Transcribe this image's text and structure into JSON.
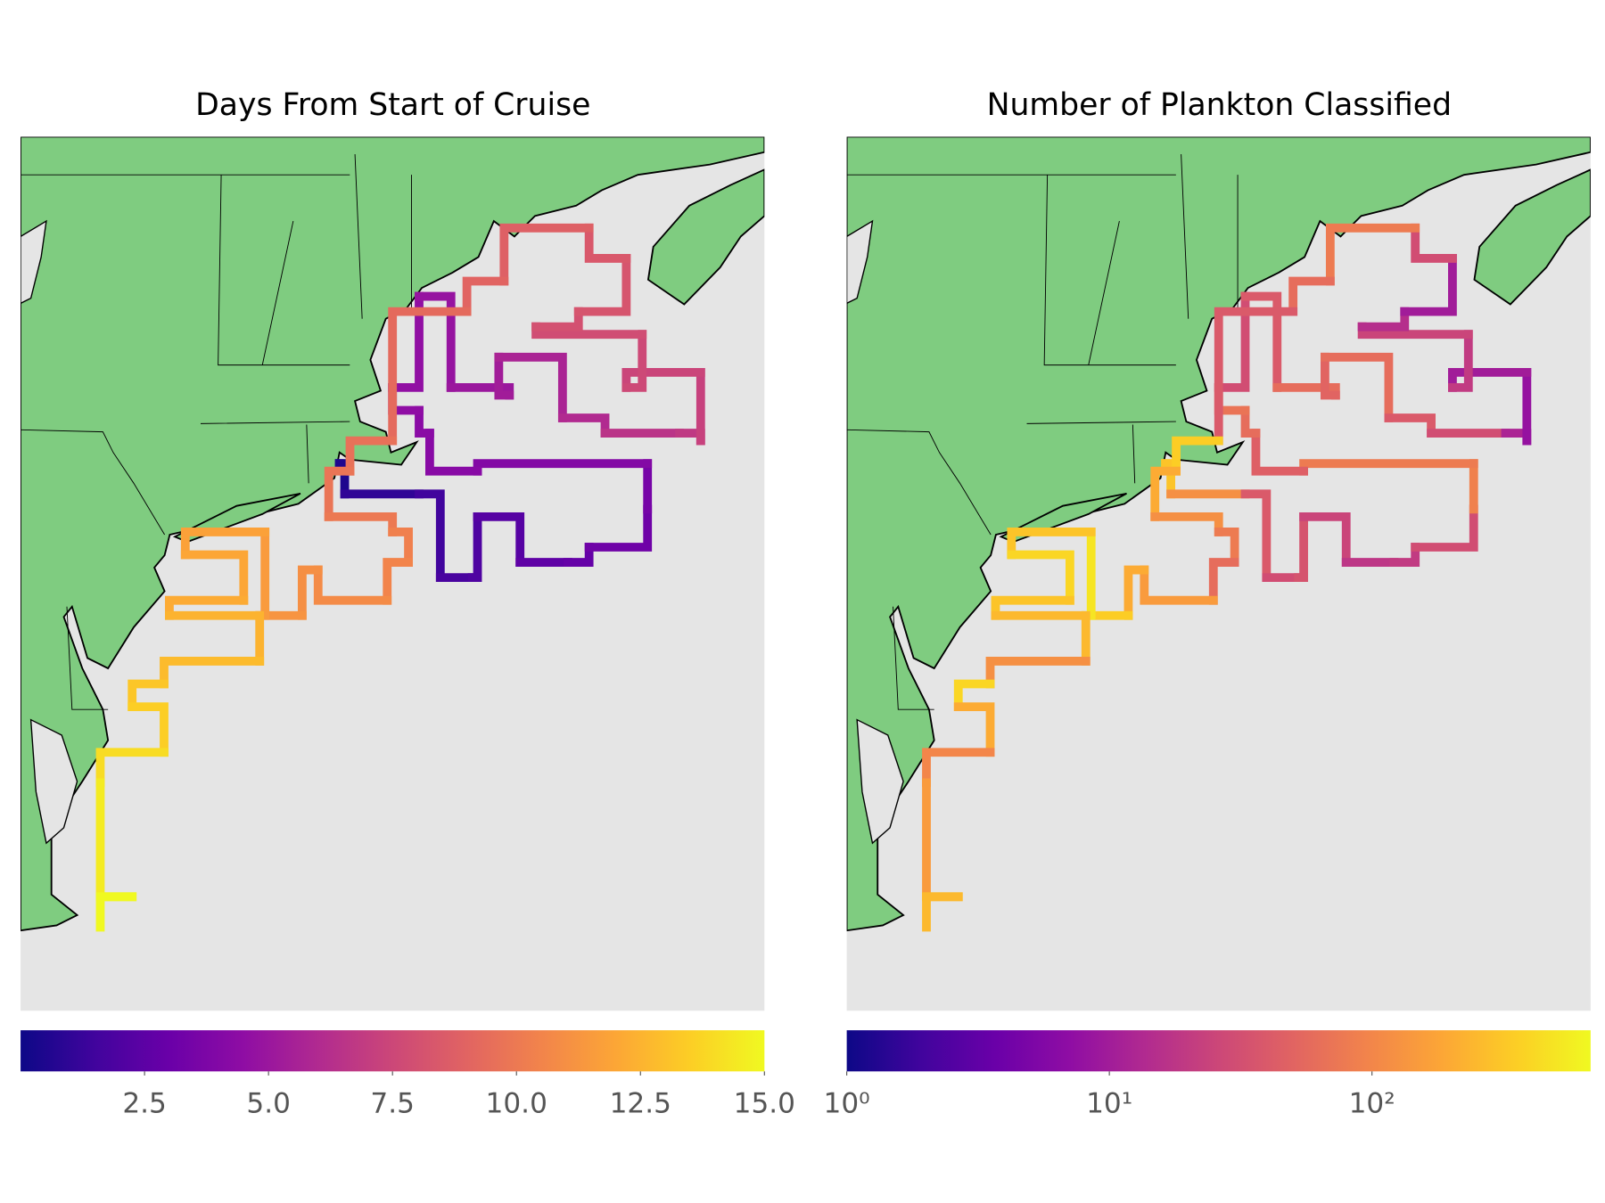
{
  "chart_data": [
    {
      "type": "map",
      "title": "Days From Start of Cruise",
      "colormap": "plasma",
      "xlim": [
        -77.5,
        -63.5
      ],
      "ylim": [
        35,
        46.5
      ],
      "track": {
        "lon": [
          -71.5,
          -71.4,
          -70.0,
          -69.6,
          -69.0,
          -68.9,
          -68.1,
          -67.2,
          -66.8,
          -65.7,
          -65.7,
          -68.9,
          -69.8,
          -70.0,
          -70.5,
          -70.0,
          -69.4,
          -68.3,
          -68.5,
          -67.3,
          -66.5,
          -65.1,
          -64.7,
          -64.7,
          -66.1,
          -65.8,
          -67.8,
          -67.0,
          -66.1,
          -66.8,
          -68.4,
          -69.1,
          -70.5,
          -71.3,
          -71.7,
          -70.5,
          -70.2,
          -70.6,
          -71.9,
          -72.2,
          -73.0,
          -72.9,
          -74.4,
          -73.3,
          -74.7,
          -73.0,
          -74.8,
          -75.4,
          -74.8,
          -76.0,
          -76.0,
          -75.4,
          -76.0
        ],
        "lat": [
          42.2,
          41.8,
          41.8,
          40.7,
          40.7,
          41.5,
          40.9,
          40.9,
          41.1,
          41.6,
          42.2,
          42.1,
          42.6,
          42.9,
          43.2,
          44.4,
          43.2,
          43.1,
          43.6,
          42.8,
          42.6,
          42.6,
          42.5,
          43.4,
          43.2,
          43.9,
          44.0,
          44.2,
          44.9,
          45.3,
          44.6,
          44.2,
          42.5,
          42.1,
          41.5,
          41.3,
          40.9,
          40.4,
          40.8,
          40.2,
          40.2,
          41.3,
          41.0,
          40.4,
          40.2,
          39.6,
          39.3,
          39.0,
          38.4,
          38.0,
          36.5,
          36.5,
          36.1
        ],
        "values": [
          0.3,
          0.5,
          1,
          1.5,
          1.8,
          2,
          2.3,
          2.6,
          2.8,
          3.2,
          3.5,
          4,
          4.2,
          4.3,
          4.5,
          4.6,
          4.8,
          5,
          5.3,
          5.7,
          6,
          6.5,
          6.8,
          7.2,
          7.4,
          7.6,
          7.8,
          8,
          8.2,
          8.4,
          8.8,
          9,
          9.3,
          9.6,
          9.8,
          10,
          10.3,
          10.5,
          10.8,
          11,
          11.2,
          11.5,
          11.8,
          12,
          12.2,
          12.5,
          12.8,
          13.2,
          13.5,
          14,
          14.5,
          14.7,
          15
        ]
      },
      "colorbar": {
        "scale": "linear",
        "clim": [
          0,
          15
        ],
        "ticks": [
          2.5,
          {
            "value": 5,
            "label": "5.0"
          },
          7.5,
          {
            "value": 10,
            "label": "10.0"
          },
          12.5,
          {
            "value": 15,
            "label": "15.0"
          }
        ]
      }
    },
    {
      "type": "map",
      "title": "Number of Plankton Classified",
      "colormap": "plasma",
      "xlim": [
        -77.5,
        -63.5
      ],
      "ylim": [
        35,
        46.5
      ],
      "track": {
        "lon": [
          -71.5,
          -71.4,
          -70.0,
          -69.6,
          -69.0,
          -68.9,
          -68.1,
          -67.2,
          -66.8,
          -65.7,
          -65.7,
          -68.9,
          -69.8,
          -70.0,
          -70.5,
          -70.0,
          -69.4,
          -68.3,
          -68.5,
          -67.3,
          -66.5,
          -65.1,
          -64.7,
          -64.7,
          -66.1,
          -65.8,
          -67.8,
          -67.0,
          -66.1,
          -66.8,
          -68.4,
          -69.1,
          -70.5,
          -71.3,
          -71.7,
          -70.5,
          -70.2,
          -70.6,
          -71.9,
          -72.2,
          -73.0,
          -72.9,
          -74.4,
          -73.3,
          -74.7,
          -73.0,
          -74.8,
          -75.4,
          -74.8,
          -76.0,
          -76.0,
          -75.4,
          -76.0
        ],
        "lat": [
          42.2,
          41.8,
          41.8,
          40.7,
          40.7,
          41.5,
          40.9,
          40.9,
          41.1,
          41.6,
          42.2,
          42.1,
          42.6,
          42.9,
          43.2,
          44.4,
          43.2,
          43.1,
          43.6,
          42.8,
          42.6,
          42.6,
          42.5,
          43.4,
          43.2,
          43.9,
          44.0,
          44.2,
          44.9,
          45.3,
          44.6,
          44.2,
          42.5,
          42.1,
          41.5,
          41.3,
          40.9,
          40.4,
          40.8,
          40.2,
          40.2,
          41.3,
          41.0,
          40.4,
          40.2,
          39.6,
          39.3,
          39.0,
          38.4,
          38.0,
          36.5,
          36.5,
          36.1
        ],
        "values": [
          400,
          300,
          120,
          40,
          30,
          35,
          25,
          18,
          20,
          30,
          90,
          80,
          45,
          60,
          70,
          30,
          40,
          60,
          50,
          60,
          40,
          30,
          12,
          8,
          10,
          20,
          25,
          15,
          10,
          30,
          80,
          60,
          40,
          350,
          200,
          120,
          80,
          60,
          150,
          200,
          350,
          500,
          300,
          400,
          300,
          250,
          120,
          400,
          200,
          100,
          150,
          300,
          250
        ]
      },
      "colorbar": {
        "scale": "log",
        "clim": [
          1,
          680
        ],
        "ticks": [
          {
            "value": 1,
            "label": "10⁰"
          },
          {
            "value": 10,
            "label": "10¹"
          },
          {
            "value": 100,
            "label": "10²"
          }
        ]
      }
    }
  ]
}
